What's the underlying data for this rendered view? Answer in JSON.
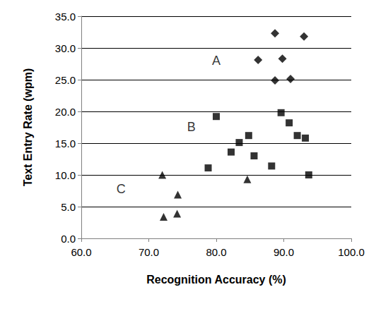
{
  "chart_data": {
    "type": "scatter",
    "x_label": "Recognition Accuracy (%)",
    "y_label": "Text Entry Rate (wpm)",
    "xlim": [
      60,
      100
    ],
    "xticks": [
      {
        "value": 60,
        "label": "60.0"
      },
      {
        "value": 70,
        "label": "70.0"
      },
      {
        "value": 80,
        "label": "80.0"
      },
      {
        "value": 90,
        "label": "90.0"
      },
      {
        "value": 100,
        "label": "100.0"
      }
    ],
    "ylim": [
      0,
      35
    ],
    "yticks": [
      {
        "value": 0,
        "label": "0.0"
      },
      {
        "value": 5,
        "label": "5.0"
      },
      {
        "value": 10,
        "label": "10.0"
      },
      {
        "value": 15,
        "label": "15.0"
      },
      {
        "value": 20,
        "label": "20.0"
      },
      {
        "value": 25,
        "label": "25.0"
      },
      {
        "value": 30,
        "label": "30.0"
      },
      {
        "value": 35,
        "label": "35.0"
      }
    ],
    "grid": true,
    "series": [
      {
        "marker": "diamond",
        "color": "#000000",
        "x": [
          88.7,
          93.0,
          86.2,
          89.8,
          88.7,
          91.0
        ],
        "values": [
          32.3,
          31.8,
          28.1,
          28.3,
          24.9,
          25.1
        ]
      },
      {
        "marker": "square",
        "color": "#000000",
        "x": [
          80.0,
          89.6,
          90.8,
          84.8,
          92.0,
          93.2,
          83.4,
          82.2,
          85.6,
          78.8,
          88.2,
          93.7
        ],
        "values": [
          19.2,
          19.8,
          18.2,
          16.2,
          16.2,
          15.8,
          15.1,
          13.6,
          13.0,
          11.1,
          11.4,
          10.0
        ]
      },
      {
        "marker": "triangle",
        "color": "#000000",
        "x": [
          72.0,
          74.3,
          84.6,
          74.2,
          72.2
        ],
        "values": [
          10.0,
          6.9,
          9.3,
          3.9,
          3.4
        ]
      }
    ],
    "annotations": [
      {
        "text": "A",
        "x": 80,
        "y": 28
      },
      {
        "text": "B",
        "x": 76.3,
        "y": 17.6
      },
      {
        "text": "C",
        "x": 65.9,
        "y": 7.8
      }
    ]
  }
}
